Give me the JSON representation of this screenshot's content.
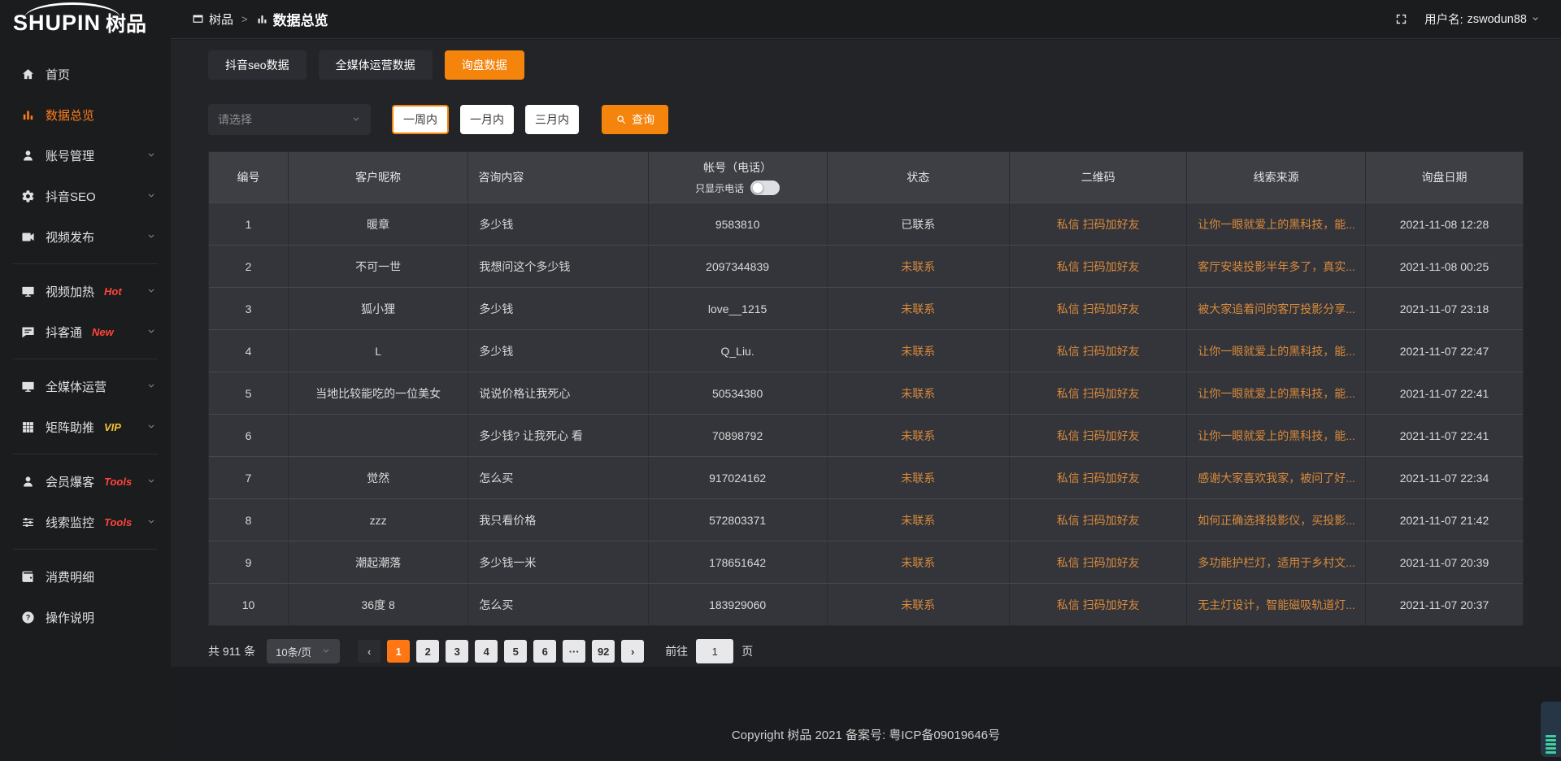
{
  "colors": {
    "accent_orange": "#f5840c",
    "link_orange": "#d98a3c",
    "active_page_orange": "#ff7614",
    "sidebar_active_orange": "#ff7d1a",
    "hot_red": "#ff4438",
    "vip_gold": "#f5c433"
  },
  "brand": {
    "logo_en": "SHUPIN",
    "logo_cn": "树品"
  },
  "topbar": {
    "breadcrumb_root": "树品",
    "breadcrumb_sep": ">",
    "breadcrumb_current": "数据总览",
    "username_label": "用户名:",
    "username": "zswodun88"
  },
  "sidebar": {
    "items": [
      {
        "id": "home",
        "icon": "home-icon",
        "label": "首页",
        "chevron": false,
        "active": false
      },
      {
        "id": "data-overview",
        "icon": "bar-chart-icon",
        "label": "数据总览",
        "chevron": false,
        "active": true
      },
      {
        "id": "account-management",
        "icon": "user-icon",
        "label": "账号管理",
        "chevron": true
      },
      {
        "id": "douyin-seo",
        "icon": "gear-icon",
        "label": "抖音SEO",
        "chevron": true
      },
      {
        "id": "video-publish",
        "icon": "video-camera-icon",
        "label": "视频发布",
        "chevron": true,
        "divider_after": true
      },
      {
        "id": "video-boost",
        "icon": "monitor-icon",
        "label": "视频加热",
        "badge": "Hot",
        "badge_color": "red",
        "chevron": true
      },
      {
        "id": "doukertong",
        "icon": "chat-icon",
        "label": "抖客通",
        "badge": "New",
        "badge_color": "red",
        "chevron": true,
        "divider_after": true
      },
      {
        "id": "omni-media",
        "icon": "screen-icon",
        "label": "全媒体运营",
        "chevron": true
      },
      {
        "id": "matrix-push",
        "icon": "grid-icon",
        "label": "矩阵助推",
        "badge": "VIP",
        "badge_color": "gold",
        "chevron": true,
        "divider_after": true
      },
      {
        "id": "member-burst",
        "icon": "person-icon",
        "label": "会员爆客",
        "badge": "Tools",
        "badge_color": "red",
        "chevron": true
      },
      {
        "id": "lead-monitor",
        "icon": "sliders-icon",
        "label": "线索监控",
        "badge": "Tools",
        "badge_color": "red",
        "chevron": true,
        "divider_after": true
      },
      {
        "id": "expense-detail",
        "icon": "wallet-icon",
        "label": "消费明细",
        "chevron": false
      },
      {
        "id": "instructions",
        "icon": "question-icon",
        "label": "操作说明",
        "chevron": false
      }
    ]
  },
  "tabs": [
    {
      "id": "douyin-seo-data",
      "label": "抖音seo数据",
      "active": false
    },
    {
      "id": "omni-media-data",
      "label": "全媒体运营数据",
      "active": false
    },
    {
      "id": "inquiry-data",
      "label": "询盘数据",
      "active": true
    }
  ],
  "filters": {
    "select_placeholder": "请选择",
    "periods": [
      "一周内",
      "一月内",
      "三月内"
    ],
    "active_period": 0,
    "search_label": "查询"
  },
  "table": {
    "columns": [
      {
        "key": "id",
        "label": "编号",
        "width": "6%",
        "align": "center"
      },
      {
        "key": "nickname",
        "label": "客户昵称",
        "width": "13.7%",
        "align": "center"
      },
      {
        "key": "content",
        "label": "咨询内容",
        "width": "13.7%",
        "align": "left",
        "header_align": "left"
      },
      {
        "key": "account",
        "label": "帐号（电话）",
        "width": "13.6%",
        "align": "center",
        "toggle_label": "只显示电话"
      },
      {
        "key": "status",
        "label": "状态",
        "width": "13.9%",
        "align": "center"
      },
      {
        "key": "qrcode",
        "label": "二维码",
        "width": "13.5%",
        "align": "center",
        "color": "orange"
      },
      {
        "key": "source",
        "label": "线索来源",
        "width": "13.6%",
        "align": "left",
        "header_align": "center",
        "color": "orange"
      },
      {
        "key": "date",
        "label": "询盘日期",
        "width": "12%",
        "align": "center"
      }
    ],
    "rows": [
      {
        "id": "1",
        "nickname": "暖章",
        "content": "多少钱",
        "account": "9583810",
        "status": "已联系",
        "contacted": true,
        "qrcode": "私信 扫码加好友",
        "source": "让你一眼就爱上的黑科技，能...",
        "date": "2021-11-08 12:28"
      },
      {
        "id": "2",
        "nickname": "不可一世",
        "content": "我想问这个多少钱",
        "account": "2097344839",
        "status": "未联系",
        "contacted": false,
        "qrcode": "私信 扫码加好友",
        "source": "客厅安装投影半年多了，真实...",
        "date": "2021-11-08 00:25"
      },
      {
        "id": "3",
        "nickname": "狐小狸",
        "content": "多少钱",
        "account": "love__1215",
        "status": "未联系",
        "contacted": false,
        "qrcode": "私信 扫码加好友",
        "source": "被大家追着问的客厅投影分享...",
        "date": "2021-11-07 23:18"
      },
      {
        "id": "4",
        "nickname": "L",
        "content": "多少钱",
        "account": "Q_Liu.",
        "status": "未联系",
        "contacted": false,
        "qrcode": "私信 扫码加好友",
        "source": "让你一眼就爱上的黑科技，能...",
        "date": "2021-11-07 22:47"
      },
      {
        "id": "5",
        "nickname": "当地比较能吃的一位美女",
        "content": "说说价格让我死心",
        "account": "50534380",
        "status": "未联系",
        "contacted": false,
        "qrcode": "私信 扫码加好友",
        "source": "让你一眼就爱上的黑科技，能...",
        "date": "2021-11-07 22:41"
      },
      {
        "id": "6",
        "nickname": "",
        "content": "多少钱? 让我死心 看",
        "account": "70898792",
        "status": "未联系",
        "contacted": false,
        "qrcode": "私信 扫码加好友",
        "source": "让你一眼就爱上的黑科技，能...",
        "date": "2021-11-07 22:41"
      },
      {
        "id": "7",
        "nickname": "觉然",
        "content": "怎么买",
        "account": "917024162",
        "status": "未联系",
        "contacted": false,
        "qrcode": "私信 扫码加好友",
        "source": "感谢大家喜欢我家，被问了好...",
        "date": "2021-11-07 22:34"
      },
      {
        "id": "8",
        "nickname": "zzz",
        "content": "我只看价格",
        "account": "572803371",
        "status": "未联系",
        "contacted": false,
        "qrcode": "私信 扫码加好友",
        "source": "如何正确选择投影仪，买投影...",
        "date": "2021-11-07 21:42"
      },
      {
        "id": "9",
        "nickname": "潮起潮落",
        "content": "多少钱一米",
        "account": "178651642",
        "status": "未联系",
        "contacted": false,
        "qrcode": "私信 扫码加好友",
        "source": "多功能护栏灯，适用于乡村文...",
        "date": "2021-11-07 20:39"
      },
      {
        "id": "10",
        "nickname": "36度 8",
        "content": "怎么买",
        "account": "183929060",
        "status": "未联系",
        "contacted": false,
        "qrcode": "私信 扫码加好友",
        "source": "无主灯设计，智能磁吸轨道灯...",
        "date": "2021-11-07 20:37"
      }
    ]
  },
  "pagination": {
    "total_label": "共 911 条",
    "page_size": "10条/页",
    "prev_label": "‹",
    "next_label": "›",
    "pages": [
      "1",
      "2",
      "3",
      "4",
      "5",
      "6",
      "···",
      "92"
    ],
    "active_page": "1",
    "goto_label": "前往",
    "goto_value": "1",
    "goto_suffix": "页"
  },
  "footer": {
    "copyright": "Copyright 树品 2021 备案号: 粤ICP备09019646号"
  }
}
